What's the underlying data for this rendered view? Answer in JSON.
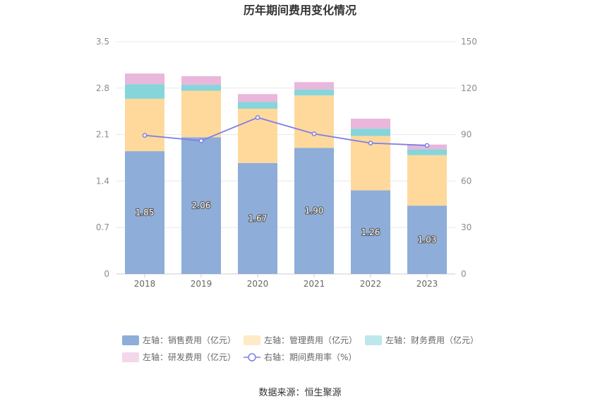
{
  "chart_data": {
    "type": "bar",
    "stacked": true,
    "title": "历年期间费用变化情况",
    "categories": [
      "2018",
      "2019",
      "2020",
      "2021",
      "2022",
      "2023"
    ],
    "left_axis": {
      "ticks": [
        "0",
        "0.7",
        "1.4",
        "2.1",
        "2.8",
        "3.5"
      ],
      "ylim": [
        0,
        3.5
      ]
    },
    "right_axis": {
      "ticks": [
        "0",
        "30",
        "60",
        "90",
        "120",
        "150"
      ],
      "ylim": [
        0,
        150
      ]
    },
    "series": [
      {
        "name": "左轴：销售费用（亿元）",
        "axis": "left",
        "type": "bar",
        "color": "#8eadd9",
        "values": [
          1.85,
          2.06,
          1.67,
          1.9,
          1.26,
          1.03
        ],
        "show_labels": true
      },
      {
        "name": "左轴：管理费用（亿元）",
        "axis": "left",
        "type": "bar",
        "color": "#ffd99b",
        "values": [
          0.79,
          0.7,
          0.82,
          0.79,
          0.82,
          0.76
        ]
      },
      {
        "name": "左轴：财务费用（亿元）",
        "axis": "left",
        "type": "bar",
        "color": "#86d5db",
        "values": [
          0.22,
          0.09,
          0.1,
          0.09,
          0.11,
          0.09
        ]
      },
      {
        "name": "左轴：研发费用（亿元）",
        "axis": "left",
        "type": "bar",
        "color": "#e9b7db",
        "values": [
          0.16,
          0.13,
          0.12,
          0.11,
          0.15,
          0.07
        ]
      },
      {
        "name": "右轴：期间费用率（%）",
        "axis": "right",
        "type": "line",
        "color": "#7b7fe8",
        "values": [
          89.5,
          86.0,
          101.0,
          90.5,
          84.5,
          83.0
        ]
      }
    ],
    "legend_position": "bottom",
    "grid": true,
    "source": "数据来源：恒生聚源"
  }
}
